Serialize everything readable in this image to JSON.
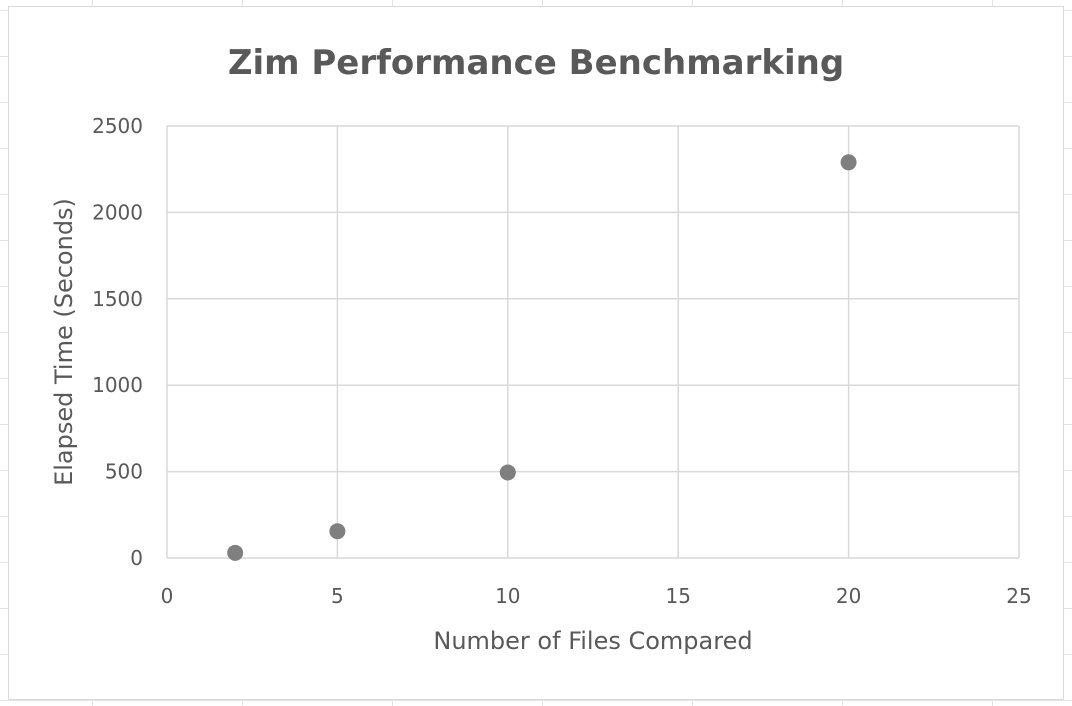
{
  "chart_data": {
    "type": "scatter",
    "title": "Zim Performance Benchmarking",
    "xlabel": "Number of Files Compared",
    "ylabel": "Elapsed Time (Seconds)",
    "xlim": [
      0,
      25
    ],
    "ylim": [
      0,
      2500
    ],
    "x_ticks": [
      0,
      5,
      10,
      15,
      20,
      25
    ],
    "y_ticks": [
      0,
      500,
      1000,
      1500,
      2000,
      2500
    ],
    "grid": true,
    "legend": "none",
    "marker_color": "#7f7f7f",
    "series": [
      {
        "x": [
          2,
          5,
          10,
          20
        ],
        "y": [
          30,
          155,
          495,
          2290
        ]
      }
    ]
  }
}
